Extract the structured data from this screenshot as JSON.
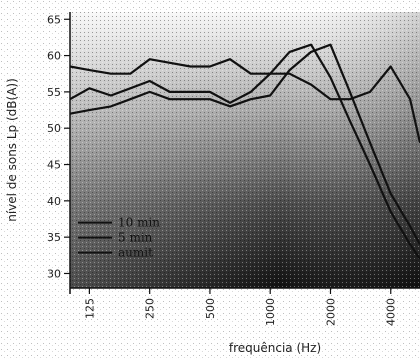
{
  "chart_data": {
    "type": "line",
    "xlabel": "frequência (Hz)",
    "ylabel": "nível de sons Lp (dB(A))",
    "x_scale": "log",
    "x_tick_labels": [
      "125",
      "250",
      "500",
      "1000",
      "2000",
      "4000"
    ],
    "x_ticks": [
      125,
      250,
      500,
      1000,
      2000,
      4000
    ],
    "xlim": [
      100,
      5600
    ],
    "ylim": [
      28,
      66
    ],
    "y_ticks": [
      30,
      35,
      40,
      45,
      50,
      55,
      60,
      65
    ],
    "grid": false,
    "legend_position": "bottom-left",
    "series": [
      {
        "name": "10 min",
        "x": [
          100,
          125,
          160,
          200,
          250,
          315,
          400,
          500,
          630,
          800,
          1000,
          1250,
          1600,
          2000,
          2500,
          3150,
          4000,
          5000,
          5600
        ],
        "y": [
          58.5,
          58,
          57.5,
          57.5,
          59.5,
          59,
          58.5,
          58.5,
          59.5,
          57.5,
          57.5,
          57.5,
          56,
          54,
          54,
          55,
          58.5,
          54,
          48
        ]
      },
      {
        "name": "5 min",
        "x": [
          100,
          125,
          160,
          200,
          250,
          315,
          400,
          500,
          630,
          800,
          1000,
          1250,
          1600,
          2000,
          2500,
          3150,
          4000,
          5000,
          5600
        ],
        "y": [
          54,
          55.5,
          54.5,
          55.5,
          56.5,
          55,
          55,
          55,
          53.5,
          55,
          57.5,
          60.5,
          61.5,
          57,
          51,
          45,
          38.5,
          34,
          32
        ]
      },
      {
        "name": "aumit",
        "x": [
          100,
          125,
          160,
          200,
          250,
          315,
          400,
          500,
          630,
          800,
          1000,
          1250,
          1600,
          2000,
          2500,
          3150,
          4000,
          5000,
          5600
        ],
        "y": [
          52,
          52.5,
          53,
          54,
          55,
          54,
          54,
          54,
          53,
          54,
          54.5,
          58,
          60.5,
          61.5,
          55,
          48,
          41,
          36.5,
          34
        ]
      }
    ]
  },
  "colors": {
    "line": "#111111",
    "background_light": "#ffffff",
    "background_dark": "#1a1a1a",
    "text": "#222222"
  }
}
